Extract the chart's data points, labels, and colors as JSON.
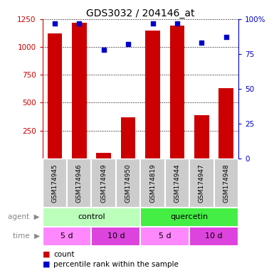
{
  "title": "GDS3032 / 204146_at",
  "samples": [
    "GSM174945",
    "GSM174946",
    "GSM174949",
    "GSM174950",
    "GSM174819",
    "GSM174944",
    "GSM174947",
    "GSM174948"
  ],
  "counts": [
    1120,
    1220,
    50,
    370,
    1150,
    1190,
    390,
    630
  ],
  "percentile_ranks": [
    97,
    97,
    78,
    82,
    97,
    97,
    83,
    87
  ],
  "ylim_left": [
    0,
    1250
  ],
  "ylim_right": [
    0,
    100
  ],
  "yticks_left": [
    250,
    500,
    750,
    1000,
    1250
  ],
  "yticks_right": [
    0,
    25,
    50,
    75,
    100
  ],
  "bar_color": "#cc0000",
  "dot_color": "#0000cc",
  "agent_labels": [
    {
      "label": "control",
      "span": [
        0,
        4
      ],
      "color": "#bbffbb"
    },
    {
      "label": "quercetin",
      "span": [
        4,
        8
      ],
      "color": "#44ee44"
    }
  ],
  "time_labels": [
    {
      "label": "5 d",
      "span": [
        0,
        2
      ],
      "color": "#ff88ff"
    },
    {
      "label": "10 d",
      "span": [
        2,
        4
      ],
      "color": "#dd44dd"
    },
    {
      "label": "5 d",
      "span": [
        4,
        6
      ],
      "color": "#ff88ff"
    },
    {
      "label": "10 d",
      "span": [
        6,
        8
      ],
      "color": "#dd44dd"
    }
  ],
  "legend_count_color": "#cc0000",
  "legend_pct_color": "#0000cc",
  "sample_box_color": "#cccccc"
}
